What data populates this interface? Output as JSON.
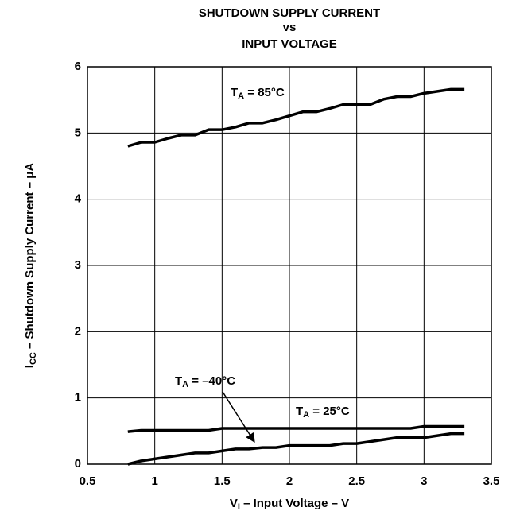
{
  "chart_data": {
    "type": "line",
    "title": [
      "SHUTDOWN SUPPLY CURRENT",
      "vs",
      "INPUT VOLTAGE"
    ],
    "x_label": {
      "main": "V",
      "sub": "I",
      "rest": " – Input Voltage – V"
    },
    "y_label": {
      "main": "I",
      "sub": "CC",
      "rest": " – Shutdown Supply Current – μA"
    },
    "x": [
      0.8,
      0.9,
      1.0,
      1.1,
      1.2,
      1.3,
      1.4,
      1.5,
      1.6,
      1.7,
      1.8,
      1.9,
      2.0,
      2.1,
      2.2,
      2.3,
      2.4,
      2.5,
      2.6,
      2.7,
      2.8,
      2.9,
      3.0,
      3.1,
      3.2,
      3.3
    ],
    "series": [
      {
        "color": "#000000",
        "values": [
          4.8,
          4.86,
          4.86,
          4.92,
          4.97,
          4.97,
          5.05,
          5.05,
          5.09,
          5.15,
          5.15,
          5.2,
          5.26,
          5.32,
          5.32,
          5.37,
          5.43,
          5.43,
          5.43,
          5.51,
          5.55,
          5.55,
          5.6,
          5.63,
          5.66,
          5.66
        ]
      },
      {
        "color": "#000000",
        "values": [
          0.49,
          0.51,
          0.51,
          0.51,
          0.51,
          0.51,
          0.51,
          0.54,
          0.54,
          0.54,
          0.54,
          0.54,
          0.54,
          0.54,
          0.54,
          0.54,
          0.54,
          0.54,
          0.54,
          0.54,
          0.54,
          0.54,
          0.57,
          0.57,
          0.57,
          0.57
        ]
      },
      {
        "color": "#000000",
        "values": [
          0,
          0.05,
          0.08,
          0.11,
          0.14,
          0.17,
          0.17,
          0.2,
          0.23,
          0.23,
          0.25,
          0.25,
          0.28,
          0.28,
          0.28,
          0.28,
          0.31,
          0.31,
          0.34,
          0.37,
          0.4,
          0.4,
          0.4,
          0.43,
          0.46,
          0.46
        ]
      }
    ],
    "annotations": [
      {
        "main": "T",
        "sub": "A",
        "rest": " = 85°C"
      },
      {
        "main": "T",
        "sub": "A",
        "rest": " = –40°C"
      },
      {
        "main": "T",
        "sub": "A",
        "rest": " = 25°C"
      }
    ],
    "xlim": [
      0.5,
      3.5
    ],
    "xticks": [
      0.5,
      1,
      1.5,
      2,
      2.5,
      3,
      3.5
    ],
    "ylim": [
      0,
      6
    ],
    "yticks": [
      0,
      1,
      2,
      3,
      4,
      5,
      6
    ],
    "grid": true
  }
}
